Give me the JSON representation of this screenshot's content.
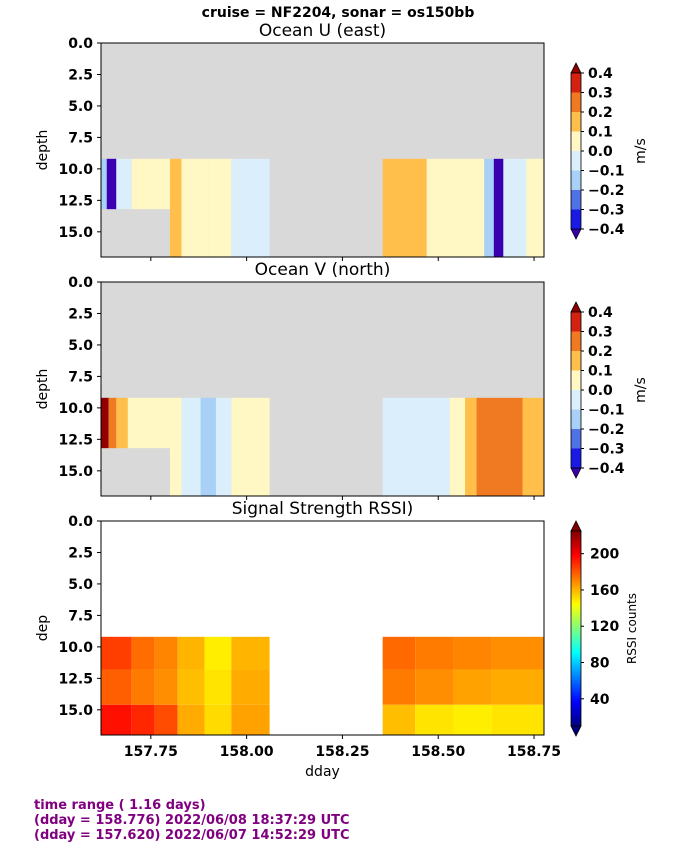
{
  "suptitle": "cruise = NF2204,  sonar = os150bb",
  "colors": {
    "nodata": "#d9d9d9",
    "footer": "#800080",
    "diverging": [
      "#3a00b0",
      "#1a1ae6",
      "#4f72e6",
      "#a9d1f7",
      "#dbeefb",
      "#fff8c5",
      "#ffd88a",
      "#ffbf4a",
      "#f07a22",
      "#d42210",
      "#900000"
    ],
    "jet": [
      "#00007f",
      "#0000ff",
      "#007fff",
      "#00ffff",
      "#7fff7f",
      "#ffff00",
      "#ff7f00",
      "#ff0000",
      "#7f0000"
    ]
  },
  "chart_data": [
    {
      "type": "heatmap",
      "title": "Ocean U (east)",
      "ylabel": "depth",
      "xlabel": "",
      "xlim": [
        157.62,
        158.776
      ],
      "ylim": [
        17,
        0
      ],
      "yticks": [
        0.0,
        2.5,
        5.0,
        7.5,
        10.0,
        12.5,
        15.0
      ],
      "ytick_labels": [
        "0.0",
        "2.5",
        "5.0",
        "7.5",
        "10.0",
        "12.5",
        "15.0"
      ],
      "xticks": [
        157.75,
        158.0,
        158.25,
        158.5,
        158.75
      ],
      "xtick_labels": [],
      "colorbar": {
        "label": "m/s",
        "ticks": [
          0.4,
          0.3,
          0.2,
          0.1,
          0.0,
          -0.1,
          -0.2,
          -0.3,
          -0.4
        ],
        "tick_labels": [
          "0.4",
          "0.3",
          "0.2",
          "0.1",
          "0.0",
          "−0.1",
          "−0.2",
          "−0.3",
          "−0.4"
        ],
        "range": [
          -0.4,
          0.4
        ]
      },
      "data_depth_top": 9.2,
      "segments": [
        {
          "x0": 157.62,
          "x1": 157.635,
          "value": -0.2,
          "ybottom": 13.2
        },
        {
          "x0": 157.635,
          "x1": 157.66,
          "value": -0.42,
          "ybottom": 13.2
        },
        {
          "x0": 157.66,
          "x1": 157.7,
          "value": -0.05,
          "ybottom": 13.2
        },
        {
          "x0": 157.7,
          "x1": 157.74,
          "value": 0.05,
          "ybottom": 13.2
        },
        {
          "x0": 157.74,
          "x1": 157.8,
          "value": 0.05,
          "ybottom": 13.2
        },
        {
          "x0": 157.8,
          "x1": 157.83,
          "value": 0.15,
          "ybottom": 17
        },
        {
          "x0": 157.83,
          "x1": 157.9,
          "value": 0.05,
          "ybottom": 17
        },
        {
          "x0": 157.9,
          "x1": 157.96,
          "value": 0.05,
          "ybottom": 17
        },
        {
          "x0": 157.96,
          "x1": 158.06,
          "value": -0.05,
          "ybottom": 17
        },
        {
          "x0": 158.355,
          "x1": 158.47,
          "value": 0.15,
          "ybottom": 17
        },
        {
          "x0": 158.47,
          "x1": 158.55,
          "value": 0.05,
          "ybottom": 17
        },
        {
          "x0": 158.55,
          "x1": 158.62,
          "value": 0.05,
          "ybottom": 17
        },
        {
          "x0": 158.62,
          "x1": 158.645,
          "value": -0.15,
          "ybottom": 17
        },
        {
          "x0": 158.645,
          "x1": 158.67,
          "value": -0.42,
          "ybottom": 17
        },
        {
          "x0": 158.67,
          "x1": 158.73,
          "value": -0.05,
          "ybottom": 17
        },
        {
          "x0": 158.73,
          "x1": 158.776,
          "value": 0.05,
          "ybottom": 17
        }
      ]
    },
    {
      "type": "heatmap",
      "title": "Ocean V (north)",
      "ylabel": "depth",
      "xlabel": "",
      "xlim": [
        157.62,
        158.776
      ],
      "ylim": [
        17,
        0
      ],
      "yticks": [
        0.0,
        2.5,
        5.0,
        7.5,
        10.0,
        12.5,
        15.0
      ],
      "ytick_labels": [
        "0.0",
        "2.5",
        "5.0",
        "7.5",
        "10.0",
        "12.5",
        "15.0"
      ],
      "xticks": [
        157.75,
        158.0,
        158.25,
        158.5,
        158.75
      ],
      "xtick_labels": [],
      "colorbar": {
        "label": "m/s",
        "ticks": [
          0.4,
          0.3,
          0.2,
          0.1,
          0.0,
          -0.1,
          -0.2,
          -0.3,
          -0.4
        ],
        "tick_labels": [
          "0.4",
          "0.3",
          "0.2",
          "0.1",
          "0.0",
          "−0.1",
          "−0.2",
          "−0.3",
          "−0.4"
        ],
        "range": [
          -0.4,
          0.4
        ]
      },
      "data_depth_top": 9.2,
      "segments": [
        {
          "x0": 157.62,
          "x1": 157.64,
          "value": 0.42,
          "ybottom": 13.2
        },
        {
          "x0": 157.64,
          "x1": 157.66,
          "value": 0.3,
          "ybottom": 13.2
        },
        {
          "x0": 157.66,
          "x1": 157.69,
          "value": 0.15,
          "ybottom": 13.2
        },
        {
          "x0": 157.69,
          "x1": 157.8,
          "value": 0.05,
          "ybottom": 13.2
        },
        {
          "x0": 157.8,
          "x1": 157.83,
          "value": 0.05,
          "ybottom": 17
        },
        {
          "x0": 157.83,
          "x1": 157.88,
          "value": -0.05,
          "ybottom": 17
        },
        {
          "x0": 157.88,
          "x1": 157.92,
          "value": -0.15,
          "ybottom": 17
        },
        {
          "x0": 157.92,
          "x1": 157.96,
          "value": -0.05,
          "ybottom": 17
        },
        {
          "x0": 157.96,
          "x1": 158.06,
          "value": 0.05,
          "ybottom": 17
        },
        {
          "x0": 158.355,
          "x1": 158.53,
          "value": -0.05,
          "ybottom": 17
        },
        {
          "x0": 158.53,
          "x1": 158.57,
          "value": 0.05,
          "ybottom": 17
        },
        {
          "x0": 158.57,
          "x1": 158.6,
          "value": 0.15,
          "ybottom": 17
        },
        {
          "x0": 158.6,
          "x1": 158.72,
          "value": 0.25,
          "ybottom": 17
        },
        {
          "x0": 158.72,
          "x1": 158.776,
          "value": 0.15,
          "ybottom": 17
        }
      ]
    },
    {
      "type": "heatmap",
      "title": "Signal Strength RSSI)",
      "ylabel": "dep",
      "xlabel": "dday",
      "xlim": [
        157.62,
        158.776
      ],
      "ylim": [
        17,
        0
      ],
      "yticks": [
        0.0,
        2.5,
        5.0,
        7.5,
        10.0,
        12.5,
        15.0
      ],
      "ytick_labels": [
        "0.0",
        "2.5",
        "5.0",
        "7.5",
        "10.0",
        "12.5",
        "15.0"
      ],
      "xticks": [
        157.75,
        158.0,
        158.25,
        158.5,
        158.75
      ],
      "xtick_labels": [
        "157.75",
        "158.00",
        "158.25",
        "158.50",
        "158.75"
      ],
      "colorbar": {
        "label": "RSSI counts",
        "ticks": [
          200,
          160,
          120,
          80,
          40
        ],
        "tick_labels": [
          "200",
          "160",
          "120",
          "80",
          "40"
        ],
        "range": [
          10,
          225
        ]
      },
      "bins": [
        {
          "top": 9.2,
          "bottom": 11.8
        },
        {
          "top": 11.8,
          "bottom": 14.6
        },
        {
          "top": 14.6,
          "bottom": 17
        }
      ],
      "segments": [
        {
          "x0": 157.62,
          "x1": 157.7,
          "values": [
            185,
            178,
            195
          ]
        },
        {
          "x0": 157.7,
          "x1": 157.76,
          "values": [
            175,
            172,
            190
          ]
        },
        {
          "x0": 157.76,
          "x1": 157.82,
          "values": [
            170,
            168,
            182
          ]
        },
        {
          "x0": 157.82,
          "x1": 157.89,
          "values": [
            160,
            158,
            162
          ]
        },
        {
          "x0": 157.89,
          "x1": 157.96,
          "values": [
            148,
            150,
            152
          ]
        },
        {
          "x0": 157.96,
          "x1": 158.06,
          "values": [
            160,
            162,
            164
          ]
        },
        {
          "x0": 158.355,
          "x1": 158.44,
          "values": [
            176,
            172,
            158
          ]
        },
        {
          "x0": 158.44,
          "x1": 158.54,
          "values": [
            172,
            168,
            150
          ]
        },
        {
          "x0": 158.54,
          "x1": 158.64,
          "values": [
            170,
            164,
            148
          ]
        },
        {
          "x0": 158.64,
          "x1": 158.776,
          "values": [
            168,
            162,
            150
          ]
        }
      ]
    }
  ],
  "footer": {
    "line1": "time range ( 1.16 days)",
    "line2": "(dday = 158.776) 2022/06/08 18:37:29 UTC",
    "line3": "(dday = 157.620) 2022/06/07 14:52:29 UTC"
  }
}
